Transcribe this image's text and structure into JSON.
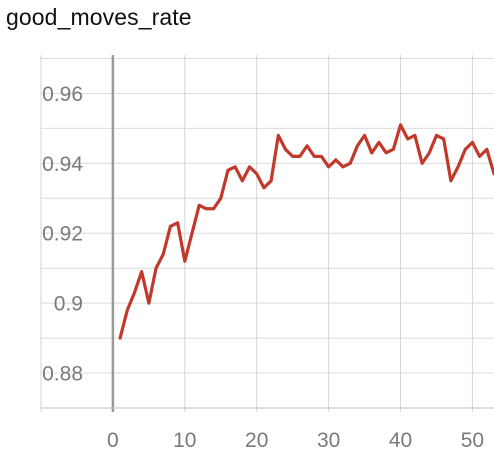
{
  "chart_data": {
    "type": "line",
    "title": "good_moves_rate",
    "xlabel": "",
    "ylabel": "",
    "xlim": [
      -10,
      53
    ],
    "ylim": [
      0.87,
      0.971
    ],
    "xticks": [
      {
        "value": 0,
        "label": "0"
      },
      {
        "value": 10,
        "label": "10"
      },
      {
        "value": 20,
        "label": "20"
      },
      {
        "value": 30,
        "label": "30"
      },
      {
        "value": 40,
        "label": "40"
      },
      {
        "value": 50,
        "label": "50"
      }
    ],
    "yticks": [
      {
        "value": 0.88,
        "label": "0.88"
      },
      {
        "value": 0.9,
        "label": "0.9"
      },
      {
        "value": 0.92,
        "label": "0.92"
      },
      {
        "value": 0.94,
        "label": "0.94"
      },
      {
        "value": 0.96,
        "label": "0.96"
      }
    ],
    "grid": true,
    "series": [
      {
        "color": "#c0392b",
        "x": [
          1,
          2,
          3,
          4,
          5,
          6,
          7,
          8,
          9,
          10,
          11,
          12,
          13,
          14,
          15,
          16,
          17,
          18,
          19,
          20,
          21,
          22,
          23,
          24,
          25,
          26,
          27,
          28,
          29,
          30,
          31,
          32,
          33,
          34,
          35,
          36,
          37,
          38,
          39,
          40,
          41,
          42,
          43,
          44,
          45,
          46,
          47,
          48,
          49,
          50,
          51,
          52,
          53
        ],
        "y": [
          0.89,
          0.898,
          0.903,
          0.909,
          0.9,
          0.91,
          0.914,
          0.922,
          0.923,
          0.912,
          0.92,
          0.928,
          0.927,
          0.927,
          0.93,
          0.938,
          0.939,
          0.935,
          0.939,
          0.937,
          0.933,
          0.935,
          0.948,
          0.944,
          0.942,
          0.942,
          0.945,
          0.942,
          0.942,
          0.939,
          0.941,
          0.939,
          0.94,
          0.945,
          0.948,
          0.943,
          0.946,
          0.943,
          0.944,
          0.951,
          0.947,
          0.948,
          0.94,
          0.943,
          0.948,
          0.947,
          0.935,
          0.939,
          0.944,
          0.946,
          0.942,
          0.944,
          0.937
        ]
      }
    ]
  }
}
